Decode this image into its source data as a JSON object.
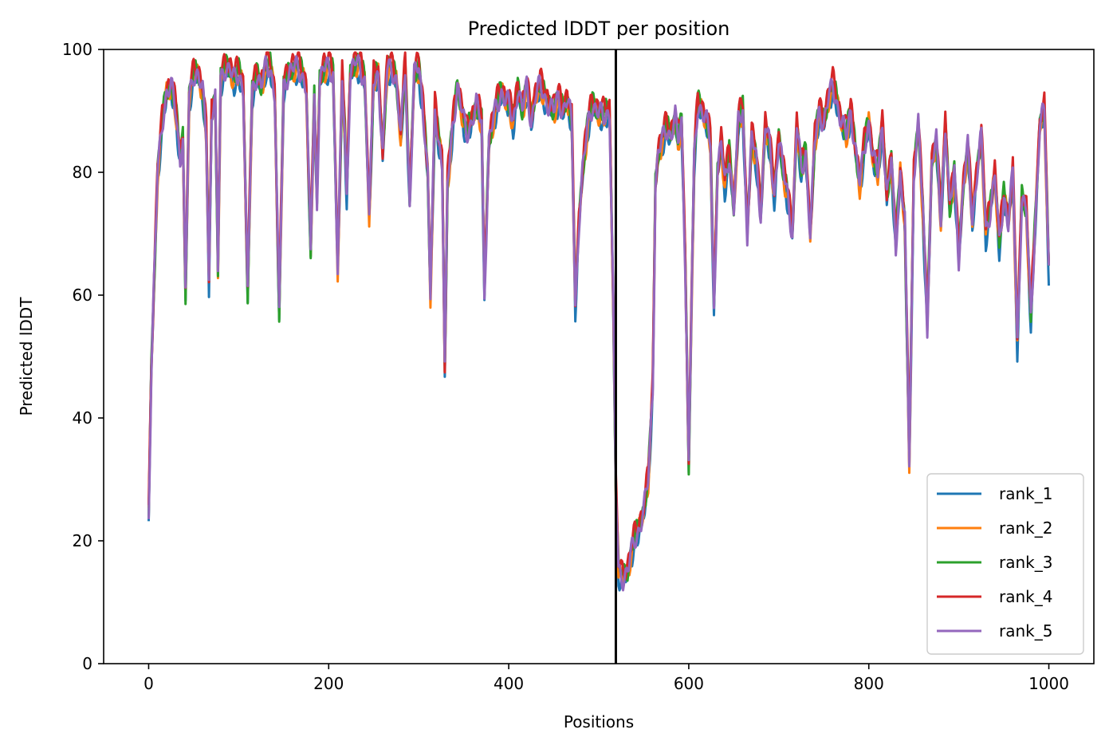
{
  "chart_data": {
    "type": "line",
    "title": "Predicted lDDT per position",
    "xlabel": "Positions",
    "ylabel": "Predicted lDDT",
    "xlim": [
      -50,
      1050
    ],
    "ylim": [
      0,
      100
    ],
    "xticks": [
      0,
      200,
      400,
      600,
      800,
      1000
    ],
    "yticks": [
      0,
      20,
      40,
      60,
      80,
      100
    ],
    "chain_break_x": 519,
    "legend_position": "lower-right",
    "grid": false,
    "series": [
      {
        "name": "rank_1",
        "color": "#1f77b4",
        "offset": -0.8
      },
      {
        "name": "rank_2",
        "color": "#ff7f0e",
        "offset": -0.3
      },
      {
        "name": "rank_3",
        "color": "#2ca02c",
        "offset": 0.5
      },
      {
        "name": "rank_4",
        "color": "#d62728",
        "offset": 1.2
      },
      {
        "name": "rank_5",
        "color": "#9467bd",
        "offset": 0.0
      }
    ],
    "profile": [
      [
        0,
        24
      ],
      [
        3,
        48
      ],
      [
        6,
        62
      ],
      [
        10,
        80
      ],
      [
        15,
        88
      ],
      [
        20,
        93
      ],
      [
        25,
        94
      ],
      [
        30,
        90
      ],
      [
        35,
        82
      ],
      [
        38,
        86
      ],
      [
        41,
        60
      ],
      [
        45,
        92
      ],
      [
        50,
        96
      ],
      [
        55,
        96
      ],
      [
        60,
        93
      ],
      [
        64,
        86
      ],
      [
        67,
        62
      ],
      [
        70,
        90
      ],
      [
        74,
        92
      ],
      [
        77,
        64
      ],
      [
        80,
        95
      ],
      [
        85,
        97
      ],
      [
        90,
        97
      ],
      [
        95,
        95
      ],
      [
        100,
        96
      ],
      [
        105,
        94
      ],
      [
        110,
        60
      ],
      [
        115,
        93
      ],
      [
        120,
        96
      ],
      [
        125,
        94
      ],
      [
        130,
        97
      ],
      [
        135,
        97
      ],
      [
        140,
        93
      ],
      [
        145,
        57
      ],
      [
        150,
        94
      ],
      [
        155,
        96
      ],
      [
        160,
        97
      ],
      [
        165,
        97
      ],
      [
        170,
        96
      ],
      [
        175,
        94
      ],
      [
        180,
        67
      ],
      [
        184,
        92
      ],
      [
        187,
        75
      ],
      [
        190,
        95
      ],
      [
        195,
        97
      ],
      [
        200,
        97
      ],
      [
        205,
        96
      ],
      [
        210,
        64
      ],
      [
        215,
        95
      ],
      [
        218,
        86
      ],
      [
        220,
        76
      ],
      [
        224,
        96
      ],
      [
        230,
        98
      ],
      [
        235,
        97
      ],
      [
        240,
        95
      ],
      [
        245,
        73
      ],
      [
        250,
        95
      ],
      [
        255,
        96
      ],
      [
        260,
        83
      ],
      [
        265,
        97
      ],
      [
        270,
        97
      ],
      [
        275,
        95
      ],
      [
        280,
        86
      ],
      [
        285,
        97
      ],
      [
        290,
        75
      ],
      [
        295,
        96
      ],
      [
        300,
        97
      ],
      [
        305,
        90
      ],
      [
        310,
        80
      ],
      [
        313,
        60
      ],
      [
        318,
        90
      ],
      [
        322,
        85
      ],
      [
        326,
        82
      ],
      [
        329,
        48
      ],
      [
        332,
        78
      ],
      [
        338,
        88
      ],
      [
        343,
        94
      ],
      [
        348,
        90
      ],
      [
        353,
        86
      ],
      [
        358,
        88
      ],
      [
        364,
        91
      ],
      [
        370,
        88
      ],
      [
        373,
        60
      ],
      [
        378,
        85
      ],
      [
        385,
        90
      ],
      [
        392,
        93
      ],
      [
        400,
        91
      ],
      [
        405,
        88
      ],
      [
        410,
        94
      ],
      [
        415,
        90
      ],
      [
        420,
        94
      ],
      [
        425,
        88
      ],
      [
        430,
        93
      ],
      [
        435,
        94
      ],
      [
        440,
        92
      ],
      [
        445,
        91
      ],
      [
        450,
        90
      ],
      [
        455,
        92
      ],
      [
        460,
        90
      ],
      [
        465,
        92
      ],
      [
        470,
        88
      ],
      [
        474,
        58
      ],
      [
        478,
        72
      ],
      [
        482,
        80
      ],
      [
        488,
        88
      ],
      [
        493,
        91
      ],
      [
        498,
        90
      ],
      [
        505,
        89
      ],
      [
        512,
        90
      ],
      [
        516,
        60
      ],
      [
        519,
        28
      ],
      [
        522,
        15
      ],
      [
        527,
        14
      ],
      [
        532,
        15
      ],
      [
        536,
        18
      ],
      [
        540,
        20
      ],
      [
        545,
        22
      ],
      [
        550,
        25
      ],
      [
        555,
        30
      ],
      [
        560,
        45
      ],
      [
        563,
        78
      ],
      [
        566,
        83
      ],
      [
        570,
        85
      ],
      [
        575,
        87
      ],
      [
        580,
        86
      ],
      [
        585,
        89
      ],
      [
        588,
        85
      ],
      [
        592,
        88
      ],
      [
        596,
        66
      ],
      [
        600,
        32
      ],
      [
        603,
        58
      ],
      [
        606,
        82
      ],
      [
        610,
        91
      ],
      [
        615,
        90
      ],
      [
        620,
        88
      ],
      [
        624,
        85
      ],
      [
        628,
        58
      ],
      [
        632,
        80
      ],
      [
        636,
        85
      ],
      [
        640,
        78
      ],
      [
        645,
        83
      ],
      [
        650,
        74
      ],
      [
        655,
        88
      ],
      [
        660,
        90
      ],
      [
        665,
        70
      ],
      [
        670,
        86
      ],
      [
        675,
        82
      ],
      [
        680,
        73
      ],
      [
        685,
        88
      ],
      [
        690,
        84
      ],
      [
        695,
        76
      ],
      [
        700,
        86
      ],
      [
        705,
        80
      ],
      [
        710,
        76
      ],
      [
        715,
        70
      ],
      [
        720,
        88
      ],
      [
        725,
        80
      ],
      [
        730,
        83
      ],
      [
        735,
        70
      ],
      [
        740,
        85
      ],
      [
        745,
        90
      ],
      [
        750,
        88
      ],
      [
        755,
        92
      ],
      [
        760,
        94
      ],
      [
        765,
        91
      ],
      [
        770,
        88
      ],
      [
        775,
        86
      ],
      [
        780,
        90
      ],
      [
        785,
        84
      ],
      [
        790,
        78
      ],
      [
        795,
        84
      ],
      [
        800,
        88
      ],
      [
        805,
        82
      ],
      [
        810,
        80
      ],
      [
        815,
        88
      ],
      [
        820,
        76
      ],
      [
        825,
        82
      ],
      [
        830,
        68
      ],
      [
        835,
        80
      ],
      [
        840,
        72
      ],
      [
        845,
        33
      ],
      [
        850,
        80
      ],
      [
        855,
        88
      ],
      [
        860,
        74
      ],
      [
        865,
        55
      ],
      [
        870,
        82
      ],
      [
        875,
        85
      ],
      [
        880,
        72
      ],
      [
        885,
        88
      ],
      [
        890,
        74
      ],
      [
        895,
        80
      ],
      [
        900,
        66
      ],
      [
        905,
        78
      ],
      [
        910,
        84
      ],
      [
        915,
        72
      ],
      [
        920,
        80
      ],
      [
        925,
        86
      ],
      [
        930,
        70
      ],
      [
        935,
        74
      ],
      [
        940,
        80
      ],
      [
        945,
        68
      ],
      [
        950,
        76
      ],
      [
        955,
        72
      ],
      [
        960,
        80
      ],
      [
        965,
        52
      ],
      [
        970,
        76
      ],
      [
        975,
        74
      ],
      [
        980,
        56
      ],
      [
        985,
        72
      ],
      [
        990,
        88
      ],
      [
        995,
        90
      ],
      [
        1000,
        64
      ]
    ]
  }
}
